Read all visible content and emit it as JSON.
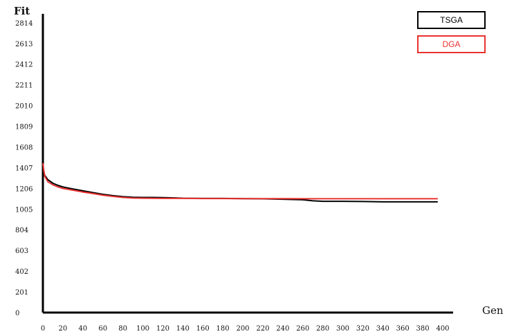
{
  "chart_data": {
    "type": "line",
    "title": "",
    "ylabel": "Fit",
    "xlabel": "Gen",
    "xlim": [
      0,
      400
    ],
    "ylim": [
      0,
      2900
    ],
    "x_ticks": [
      0,
      20,
      40,
      60,
      80,
      100,
      120,
      140,
      160,
      180,
      200,
      220,
      240,
      260,
      280,
      300,
      320,
      340,
      360,
      380,
      400
    ],
    "y_ticks": [
      0,
      201,
      402,
      603,
      804,
      1005,
      1206,
      1407,
      1608,
      1809,
      2010,
      2211,
      2412,
      2613,
      2814
    ],
    "grid": false,
    "legend_position": "top-right",
    "series": [
      {
        "name": "TSGA",
        "color": "#000000",
        "x": [
          0,
          1,
          2,
          5,
          10,
          15,
          20,
          30,
          40,
          50,
          60,
          70,
          80,
          90,
          100,
          110,
          120,
          130,
          140,
          160,
          180,
          200,
          220,
          240,
          260,
          270,
          280,
          300,
          320,
          340,
          360,
          380,
          395
        ],
        "y": [
          1400,
          1360,
          1330,
          1290,
          1255,
          1235,
          1220,
          1200,
          1182,
          1165,
          1148,
          1135,
          1125,
          1120,
          1118,
          1118,
          1116,
          1114,
          1110,
          1108,
          1108,
          1106,
          1104,
          1100,
          1095,
          1085,
          1080,
          1080,
          1078,
          1075,
          1075,
          1075,
          1075
        ]
      },
      {
        "name": "DGA",
        "color": "#e8312f",
        "x": [
          0,
          1,
          2,
          5,
          10,
          15,
          20,
          30,
          40,
          50,
          60,
          70,
          80,
          90,
          100,
          120,
          140,
          160,
          180,
          200,
          220,
          240,
          260,
          280,
          300,
          320,
          340,
          360,
          380,
          395
        ],
        "y": [
          1450,
          1380,
          1320,
          1270,
          1240,
          1220,
          1205,
          1188,
          1170,
          1155,
          1140,
          1128,
          1118,
          1112,
          1110,
          1108,
          1108,
          1107,
          1107,
          1106,
          1106,
          1106,
          1105,
          1105,
          1105,
          1105,
          1105,
          1105,
          1105,
          1105
        ]
      }
    ]
  }
}
